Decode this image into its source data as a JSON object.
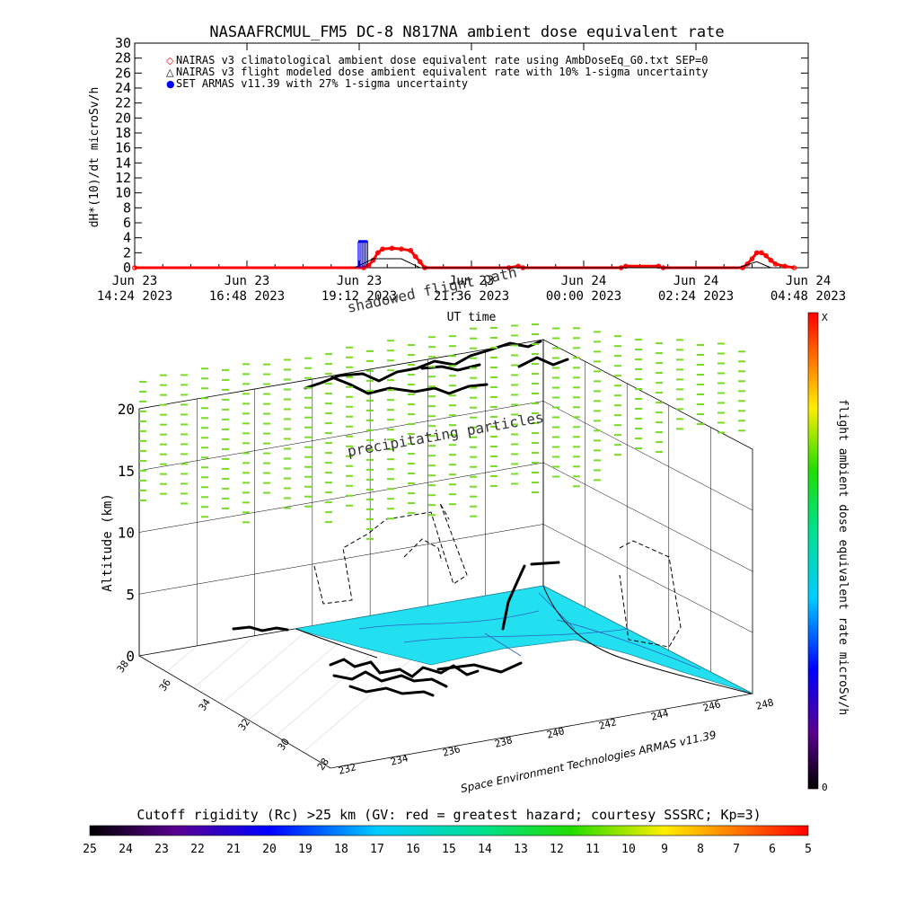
{
  "title": "NASAAFRCMUL_FM5 DC-8   N817NA ambient dose equivalent rate",
  "timeseries": {
    "ylabel": "dH*(10)/dt microSv/h",
    "xlabel": "UT time",
    "yticks": [
      "0",
      "2",
      "4",
      "6",
      "8",
      "10",
      "12",
      "14",
      "16",
      "18",
      "20",
      "22",
      "24",
      "26",
      "28",
      "30"
    ],
    "ylim": [
      0,
      30
    ],
    "xticks": [
      {
        "day": "Jun 23",
        "time": "14:24 2023"
      },
      {
        "day": "Jun 23",
        "time": "16:48 2023"
      },
      {
        "day": "Jun 23",
        "time": "19:12 2023"
      },
      {
        "day": "Jun 23",
        "time": "21:36 2023"
      },
      {
        "day": "Jun 24",
        "time": "00:00 2023"
      },
      {
        "day": "Jun 24",
        "time": "02:24 2023"
      },
      {
        "day": "Jun 24",
        "time": "04:48 2023"
      }
    ],
    "legend": [
      {
        "symbol": "◇",
        "color": "#ff0000",
        "text": "NAIRAS v3 climatological ambient dose equivalent rate using AmbDoseEq_G0.txt SEP=0"
      },
      {
        "symbol": "△",
        "color": "#000000",
        "text": "NAIRAS v3 flight modeled dose ambient equivalent rate with 10% 1-sigma uncertainty"
      },
      {
        "symbol": "●",
        "color": "#0000ff",
        "text": "SET ARMAS v11.39 with 27% 1-sigma uncertainty"
      }
    ]
  },
  "chart_data": {
    "type": "line",
    "x_unit": "UT hours since Jun 23 14:24 2023",
    "xlim": [
      0,
      14.4
    ],
    "ylim": [
      0,
      30
    ],
    "series": [
      {
        "name": "NAIRAS v3 climatological ambient dose equivalent rate using AmbDoseEq_G0.txt SEP=0",
        "color": "#ff0000",
        "x": [
          0,
          4.9,
          5.0,
          5.1,
          5.2,
          5.3,
          5.5,
          5.7,
          5.9,
          6.0,
          6.1,
          6.2,
          8.0,
          8.2,
          8.3,
          10.4,
          10.5,
          11.2,
          11.3,
          13.0,
          13.1,
          13.2,
          13.3,
          13.4,
          13.5,
          13.6,
          13.7,
          13.9,
          14.1
        ],
        "y": [
          0,
          0,
          0.3,
          1.0,
          2.0,
          2.5,
          2.6,
          2.5,
          2.3,
          1.5,
          0.8,
          0,
          0,
          0.2,
          0,
          0,
          0.2,
          0.2,
          0,
          0,
          0.5,
          1.2,
          2.0,
          2.0,
          1.6,
          1.0,
          0.5,
          0.2,
          0
        ]
      },
      {
        "name": "NAIRAS v3 flight modeled dose ambient equivalent rate with 10% 1-sigma uncertainty",
        "color": "#000000",
        "x": [
          4.7,
          5.1,
          5.7,
          6.1,
          12.9,
          13.3,
          13.6
        ],
        "y": [
          0,
          1.2,
          1.2,
          0,
          0,
          0.8,
          0
        ]
      },
      {
        "name": "SET ARMAS v11.39 with 27% 1-sigma uncertainty",
        "color": "#0000ff",
        "x": [
          4.78,
          4.82,
          4.86,
          4.9,
          4.94,
          4.98
        ],
        "y": [
          3.5,
          3.5,
          3.5,
          3.5,
          3.5,
          3.5
        ]
      }
    ]
  },
  "map3d": {
    "annotations": {
      "shadowed": "shadowed flight path",
      "particles": "precipitating particles",
      "credit": "Space Environment Technologies ARMAS v11.39"
    },
    "altitude_label": "Altitude (km)",
    "altitude_ticks": [
      "0",
      "5",
      "10",
      "15",
      "20"
    ],
    "lat_ticks": [
      "36",
      "34",
      "32",
      "30",
      "28"
    ],
    "lat_top": "38",
    "lon_ticks": [
      "232",
      "234",
      "236",
      "238",
      "240",
      "242",
      "244",
      "246"
    ],
    "lon_end": "248"
  },
  "dose_colorbar": {
    "label": "flight ambient dose equivalent rate microSv/h",
    "top": "X",
    "bottom": "0"
  },
  "rigidity_colorbar": {
    "title": "Cutoff rigidity (Rc) >25 km (GV: red = greatest hazard; courtesy SSSRC; Kp=3)",
    "ticks": [
      "25",
      "24",
      "23",
      "22",
      "21",
      "20",
      "19",
      "18",
      "17",
      "16",
      "15",
      "14",
      "13",
      "12",
      "11",
      "10",
      "9",
      "8",
      "7",
      "6",
      "5"
    ]
  }
}
